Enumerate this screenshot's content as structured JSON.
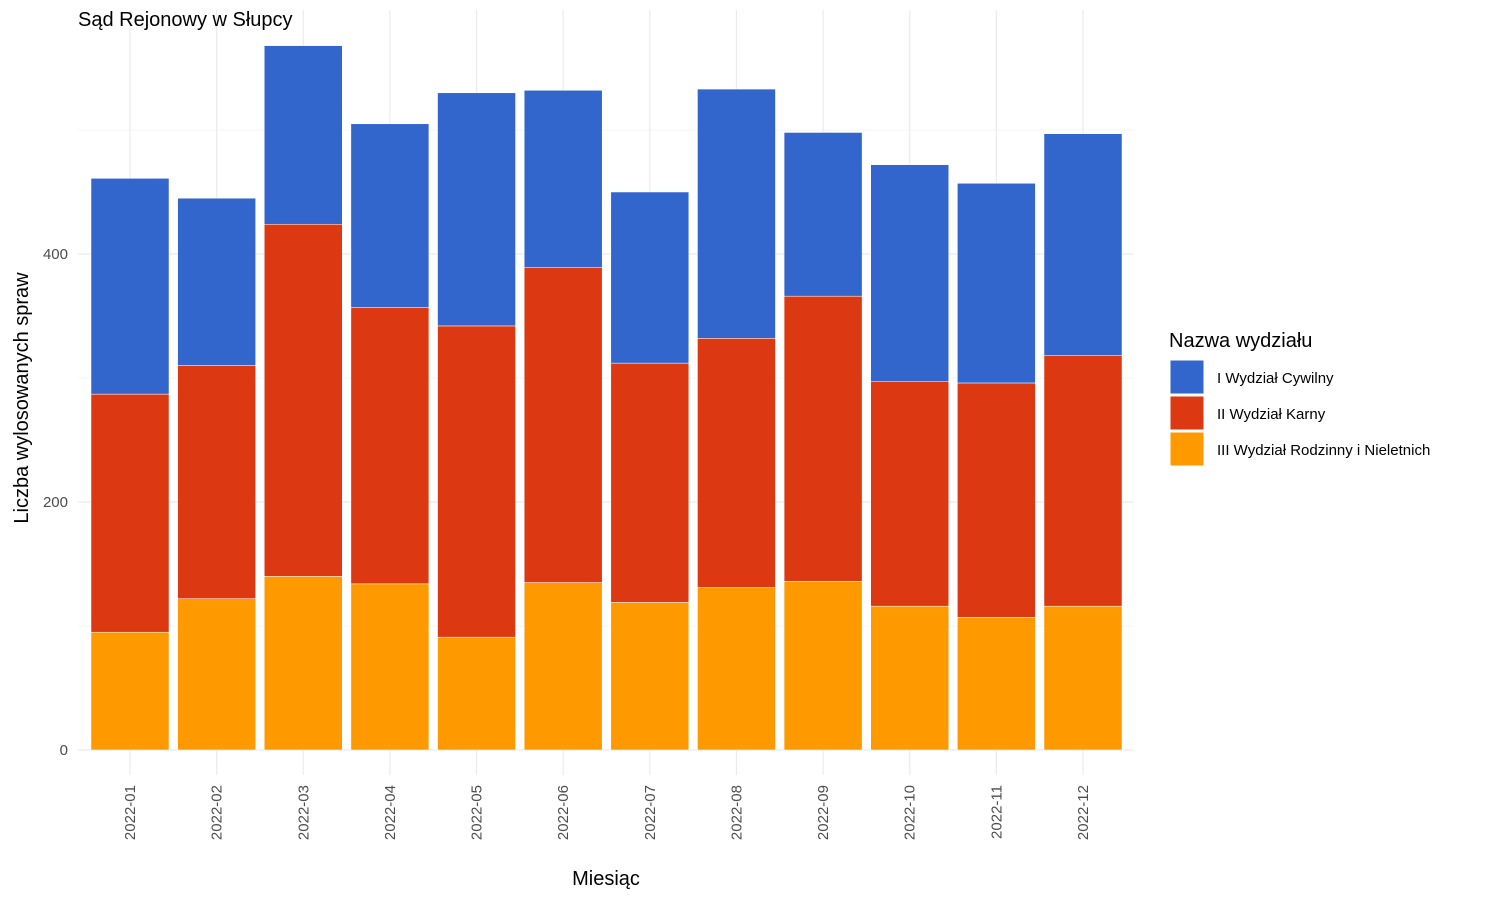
{
  "chart_data": {
    "type": "bar",
    "stacked": true,
    "title": "Sąd Rejonowy w Słupcy",
    "xlabel": "Miesiąc",
    "ylabel": "Liczba wylosowanych spraw",
    "ylim": [
      0,
      600
    ],
    "yticks": [
      0,
      200,
      400
    ],
    "grid": true,
    "legend_title": "Nazwa wydziału",
    "legend_position": "right",
    "categories": [
      "2022-01",
      "2022-02",
      "2022-03",
      "2022-04",
      "2022-05",
      "2022-06",
      "2022-07",
      "2022-08",
      "2022-09",
      "2022-10",
      "2022-11",
      "2022-12"
    ],
    "series": [
      {
        "name": "III Wydział Rodzinny i Nieletnich",
        "color": "#FF9900",
        "values": [
          95,
          122,
          140,
          134,
          91,
          135,
          119,
          131,
          136,
          116,
          107,
          116
        ]
      },
      {
        "name": "II Wydział Karny",
        "color": "#DC3912",
        "values": [
          192,
          188,
          284,
          223,
          251,
          254,
          193,
          201,
          230,
          181,
          189,
          202
        ]
      },
      {
        "name": "I Wydział Cywilny",
        "color": "#3366CC",
        "values": [
          174,
          135,
          144,
          148,
          188,
          143,
          138,
          201,
          132,
          175,
          161,
          179
        ]
      }
    ],
    "legend_order": [
      "I Wydział Cywilny",
      "II Wydział Karny",
      "III Wydział Rodzinny i Nieletnich"
    ]
  }
}
